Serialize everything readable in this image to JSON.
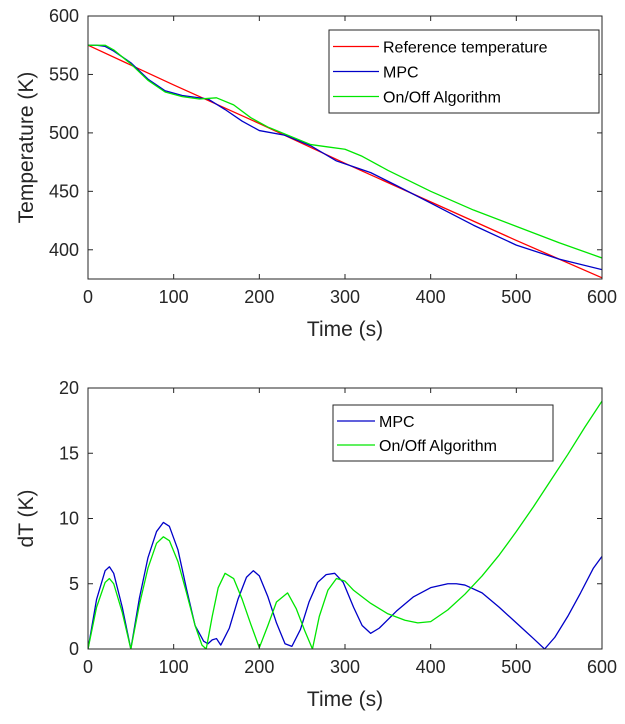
{
  "chart_data": [
    {
      "type": "line",
      "title": "",
      "xlabel": "Time (s)",
      "ylabel": "Temperature (K)",
      "xlim": [
        0,
        600
      ],
      "ylim": [
        375,
        600
      ],
      "xticks": [
        "0",
        "100",
        "200",
        "300",
        "400",
        "500",
        "600"
      ],
      "yticks": [
        "400",
        "450",
        "500",
        "550",
        "600"
      ],
      "grid": false,
      "legend_position": "top-right",
      "series": [
        {
          "name": "Reference temperature",
          "color": "#ff0000",
          "x": [
            0,
            100,
            200,
            300,
            400,
            500,
            600
          ],
          "y": [
            575,
            541,
            508,
            474,
            441,
            408,
            376
          ]
        },
        {
          "name": "MPC",
          "color": "#0000c8",
          "x": [
            0,
            10,
            20,
            30,
            50,
            70,
            90,
            110,
            140,
            160,
            180,
            200,
            230,
            260,
            290,
            310,
            330,
            360,
            400,
            450,
            500,
            550,
            600
          ],
          "y": [
            575,
            575,
            574,
            570,
            560,
            546,
            536,
            532,
            529,
            520,
            510,
            502,
            498,
            489,
            476,
            471,
            466,
            455,
            440,
            421,
            404,
            392,
            383
          ]
        },
        {
          "name": "On/Off Algorithm",
          "color": "#00e600",
          "x": [
            0,
            10,
            20,
            30,
            50,
            70,
            90,
            110,
            130,
            150,
            170,
            190,
            210,
            240,
            260,
            280,
            300,
            320,
            350,
            400,
            450,
            500,
            550,
            600
          ],
          "y": [
            575,
            575,
            575,
            571,
            559,
            545,
            535,
            531,
            529,
            530,
            524,
            513,
            505,
            496,
            490,
            488,
            486,
            480,
            468,
            450,
            434,
            420,
            406,
            393
          ]
        }
      ]
    },
    {
      "type": "line",
      "title": "",
      "xlabel": "Time (s)",
      "ylabel": "dT (K)",
      "xlim": [
        0,
        600
      ],
      "ylim": [
        0,
        20
      ],
      "xticks": [
        "0",
        "100",
        "200",
        "300",
        "400",
        "500",
        "600"
      ],
      "yticks": [
        "0",
        "5",
        "10",
        "15",
        "20"
      ],
      "grid": false,
      "legend_position": "top-right",
      "series": [
        {
          "name": "MPC",
          "color": "#0000c8",
          "x": [
            0,
            10,
            20,
            25,
            30,
            40,
            50,
            60,
            70,
            80,
            88,
            95,
            105,
            115,
            125,
            135,
            140,
            145,
            150,
            155,
            165,
            175,
            185,
            193,
            200,
            210,
            220,
            230,
            238,
            248,
            258,
            268,
            278,
            288,
            298,
            310,
            320,
            330,
            340,
            360,
            380,
            400,
            420,
            430,
            440,
            460,
            480,
            500,
            520,
            533,
            545,
            560,
            575,
            590,
            600
          ],
          "y": [
            0,
            3.8,
            6.0,
            6.3,
            5.8,
            3.2,
            0,
            3.9,
            7.0,
            9.0,
            9.7,
            9.4,
            7.6,
            4.6,
            1.8,
            0.6,
            0.4,
            0.7,
            0.8,
            0.3,
            1.6,
            3.8,
            5.5,
            6.0,
            5.6,
            4.0,
            2.0,
            0.4,
            0.2,
            1.5,
            3.6,
            5.1,
            5.7,
            5.8,
            5.1,
            3.2,
            1.8,
            1.2,
            1.6,
            2.9,
            4.0,
            4.7,
            5.0,
            5.0,
            4.9,
            4.3,
            3.2,
            2.0,
            0.8,
            0,
            0.9,
            2.5,
            4.3,
            6.2,
            7.1
          ]
        },
        {
          "name": "On/Off Algorithm",
          "color": "#00e600",
          "x": [
            0,
            10,
            20,
            25,
            30,
            40,
            50,
            60,
            70,
            80,
            88,
            95,
            105,
            115,
            125,
            133,
            138,
            145,
            152,
            160,
            170,
            180,
            190,
            200,
            210,
            220,
            233,
            243,
            253,
            262,
            270,
            280,
            290,
            300,
            310,
            330,
            350,
            370,
            385,
            400,
            420,
            440,
            460,
            480,
            500,
            520,
            540,
            560,
            580,
            600
          ],
          "y": [
            0,
            3.2,
            5.1,
            5.4,
            5.0,
            2.8,
            0,
            3.4,
            6.2,
            8.1,
            8.6,
            8.3,
            6.7,
            4.3,
            1.8,
            0.3,
            0,
            2.5,
            4.7,
            5.8,
            5.4,
            3.8,
            1.9,
            0.1,
            1.8,
            3.6,
            4.3,
            3.1,
            1.4,
            0,
            2.5,
            4.5,
            5.4,
            5.2,
            4.5,
            3.5,
            2.7,
            2.2,
            2.0,
            2.1,
            3.0,
            4.2,
            5.6,
            7.2,
            9.0,
            10.9,
            12.9,
            14.9,
            17.0,
            19.0
          ]
        }
      ]
    }
  ]
}
